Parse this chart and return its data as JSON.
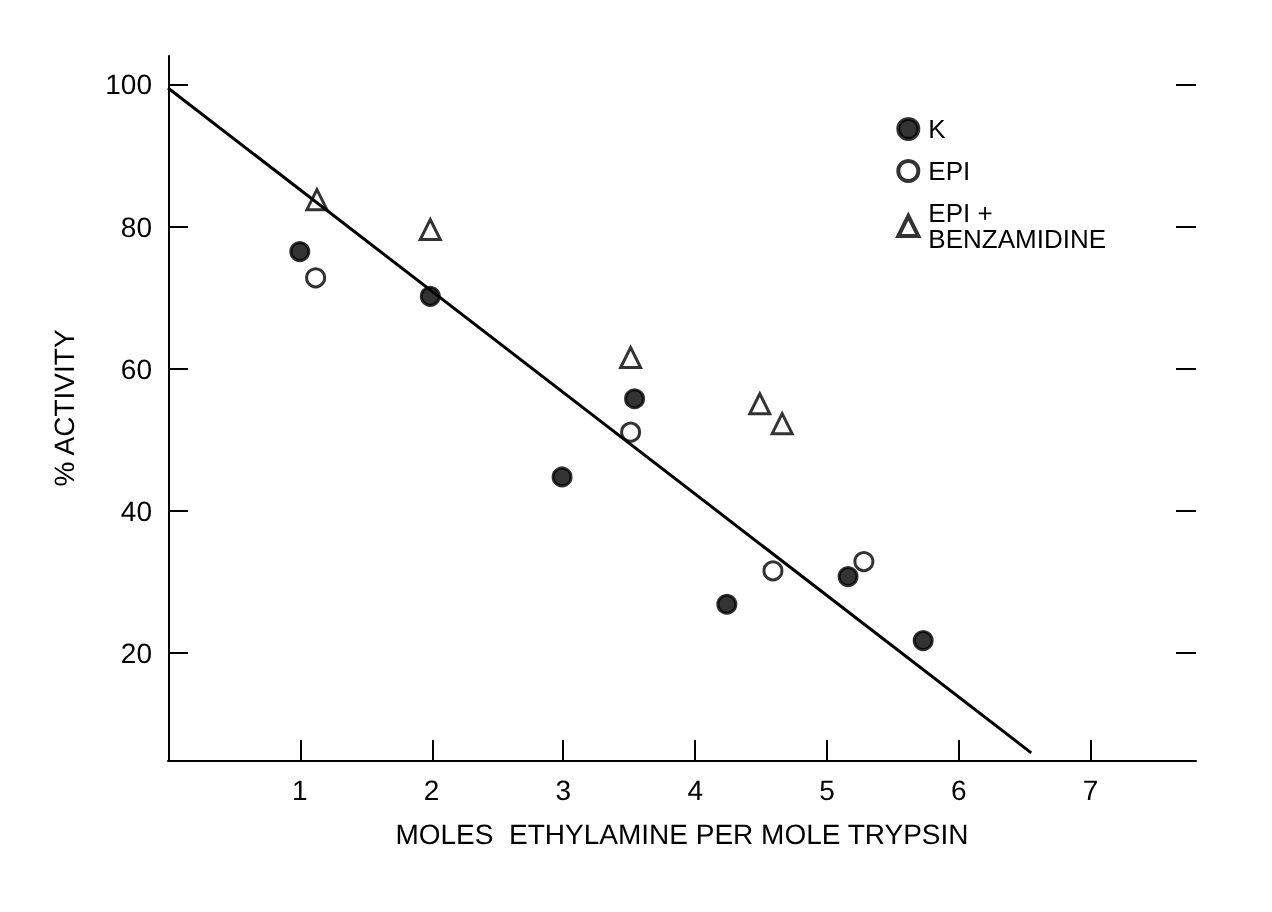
{
  "chart_data": {
    "type": "scatter",
    "xlabel": "MOLES  ETHYLAMINE PER MOLE TRYPSIN",
    "ylabel": "% ACTIVITY",
    "xlim": [
      0,
      7.8
    ],
    "xticks": [
      1,
      2,
      3,
      4,
      5,
      6,
      7
    ],
    "ylim": [
      5,
      104
    ],
    "yticks": [
      20,
      40,
      60,
      80,
      100
    ],
    "legend": "top right",
    "grid": false,
    "series": [
      {
        "name": "K",
        "color": "#000000",
        "marker": "circle",
        "x": [
          1.0,
          1.99,
          2.99,
          3.54,
          4.24,
          5.16,
          5.73
        ],
        "values": [
          76.5,
          70.2,
          44.8,
          55.8,
          26.9,
          30.8,
          21.8
        ]
      },
      {
        "name": "EPI",
        "color": "#ffffff",
        "marker": "circle",
        "x": [
          1.12,
          3.51,
          4.59,
          5.28
        ],
        "values": [
          72.8,
          51.1,
          31.6,
          32.9
        ]
      },
      {
        "name": "EPI + BENZAMIDINE",
        "color": "#ffffff",
        "marker": "triangle",
        "x": [
          1.13,
          1.99,
          3.51,
          4.49,
          4.66
        ],
        "values": [
          83.8,
          79.6,
          61.6,
          55.1,
          52.3
        ]
      },
      {
        "type": "line",
        "color": "#000000",
        "marker": "none",
        "x": [
          0,
          6.55
        ],
        "values": [
          99.5,
          6
        ]
      }
    ]
  }
}
